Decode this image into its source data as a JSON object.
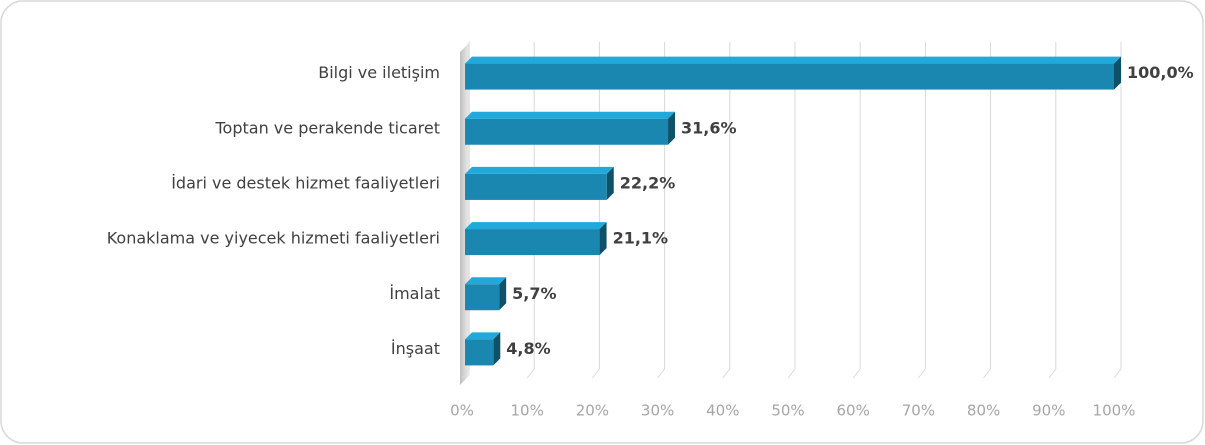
{
  "chart_data": {
    "type": "bar",
    "orientation": "horizontal",
    "categories": [
      "Bilgi ve iletişim",
      "Toptan ve perakende ticaret",
      "İdari ve destek hizmet faaliyetleri",
      "Konaklama ve yiyecek hizmeti faaliyetleri",
      "İmalat",
      "İnşaat"
    ],
    "values": [
      100,
      31.6,
      22.2,
      21.1,
      5.7,
      4.8
    ],
    "value_labels": [
      "100,0%",
      "31,6%",
      "22,2%",
      "21,1%",
      "5,7%",
      "4,8%"
    ],
    "color": "#1a87b0",
    "xlim": [
      0,
      100
    ],
    "xticks": [
      {
        "value": 0,
        "label": "0%"
      },
      {
        "value": 10,
        "label": "10%"
      },
      {
        "value": 20,
        "label": "20%"
      },
      {
        "value": 30,
        "label": "30%"
      },
      {
        "value": 40,
        "label": "40%"
      },
      {
        "value": 50,
        "label": "50%"
      },
      {
        "value": 60,
        "label": "60%"
      },
      {
        "value": 70,
        "label": "70%"
      },
      {
        "value": 80,
        "label": "80%"
      },
      {
        "value": 90,
        "label": "90%"
      },
      {
        "value": 100,
        "label": "100%"
      }
    ],
    "grid": true
  }
}
